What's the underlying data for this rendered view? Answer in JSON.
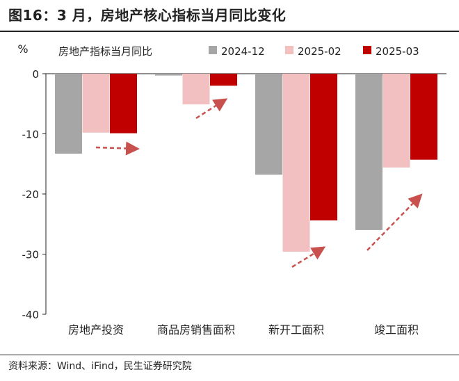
{
  "header": {
    "title": "图16：3 月，房地产核心指标当月同比变化"
  },
  "footer": {
    "source": "资料来源：Wind、iFind，民生证券研究院"
  },
  "colors": {
    "s2024_12": "#a6a6a6",
    "s2025_02": "#f2c0c0",
    "s2025_03": "#c00000",
    "arrow": "#c8504d"
  },
  "chart_data": {
    "type": "bar",
    "title": "",
    "ylabel": "%",
    "legend_title": "房地产指标当月同比",
    "legend_position": "top",
    "categories": [
      "房地产投资",
      "商品房销售面积",
      "新开工面积",
      "竣工面积"
    ],
    "series": [
      {
        "name": "2024-12",
        "values": [
          -13.3,
          -0.3,
          -16.8,
          -26.0
        ]
      },
      {
        "name": "2025-02",
        "values": [
          -9.8,
          -5.1,
          -29.6,
          -15.6
        ]
      },
      {
        "name": "2025-03",
        "values": [
          -9.9,
          -2.0,
          -24.4,
          -14.3
        ]
      }
    ],
    "ylim": [
      -40,
      0
    ],
    "yticks": [
      0,
      -10,
      -20,
      -30,
      -40
    ],
    "grid": false
  }
}
